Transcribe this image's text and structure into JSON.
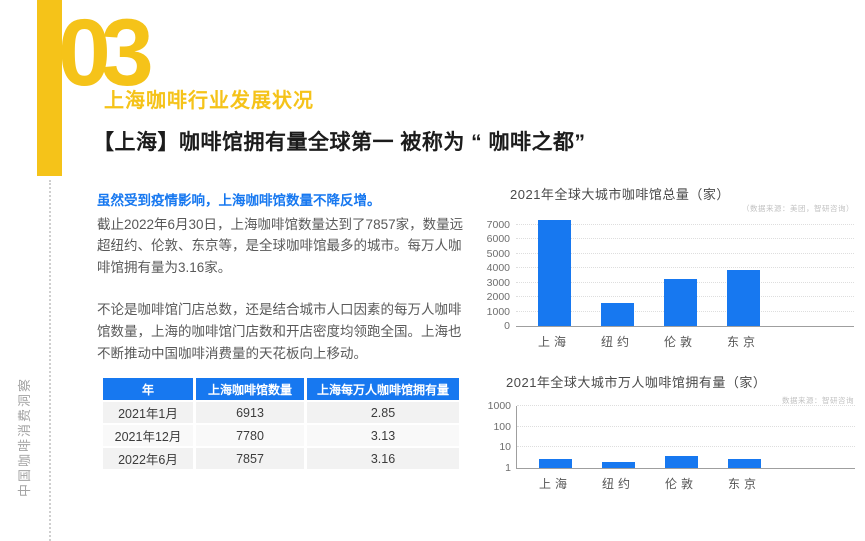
{
  "colors": {
    "accent_yellow": "#F5C319",
    "accent_blue": "#1778F0"
  },
  "page": {
    "section_number": "03",
    "section_title": "上海咖啡行业发展状况",
    "headline": "【上海】咖啡馆拥有量全球第一 被称为 “ 咖啡之都”",
    "side_label": "中国咖啡消费洞察"
  },
  "article": {
    "lead": "虽然受到疫情影响，上海咖啡馆数量不降反增。",
    "para1": "截止2022年6月30日，上海咖啡馆数量达到了7857家，数量远超纽约、伦敦、东京等，是全球咖啡馆最多的城市。每万人咖啡馆拥有量为3.16家。",
    "para2": "不论是咖啡馆门店总数，还是结合城市人口因素的每万人咖啡馆数量，上海的咖啡馆门店数和开店密度均领跑全国。上海也不断推动中国咖啡消费量的天花板向上移动。"
  },
  "table": {
    "headers": [
      "年",
      "上海咖啡馆数量",
      "上海每万人咖啡馆拥有量"
    ],
    "rows": [
      [
        "2021年1月",
        "6913",
        "2.85"
      ],
      [
        "2021年12月",
        "7780",
        "3.13"
      ],
      [
        "2022年6月",
        "7857",
        "3.16"
      ]
    ]
  },
  "chart_data": [
    {
      "type": "bar",
      "title": "2021年全球大城市咖啡馆总量（家）",
      "source": "（数据来源：美团，智研咨询）",
      "categories": [
        "上海",
        "纽约",
        "伦敦",
        "东京"
      ],
      "values": [
        7300,
        1600,
        3250,
        3850
      ],
      "yticks": [
        0,
        1000,
        2000,
        3000,
        4000,
        5000,
        6000,
        7000
      ],
      "ylim": [
        0,
        7600
      ],
      "scale": "linear",
      "grid": true,
      "legend": "none",
      "bar_color": "#1778F0"
    },
    {
      "type": "bar",
      "title": "2021年全球大城市万人咖啡馆拥有量（家）",
      "source": "数据来源：智研咨询",
      "categories": [
        "上海",
        "纽约",
        "伦敦",
        "东京"
      ],
      "values": [
        2.85,
        1.9,
        3.7,
        2.75
      ],
      "yticks": [
        1,
        10,
        100,
        1000
      ],
      "ylim": [
        1,
        1000
      ],
      "scale": "log",
      "grid": true,
      "legend": "none",
      "bar_color": "#1778F0"
    }
  ]
}
